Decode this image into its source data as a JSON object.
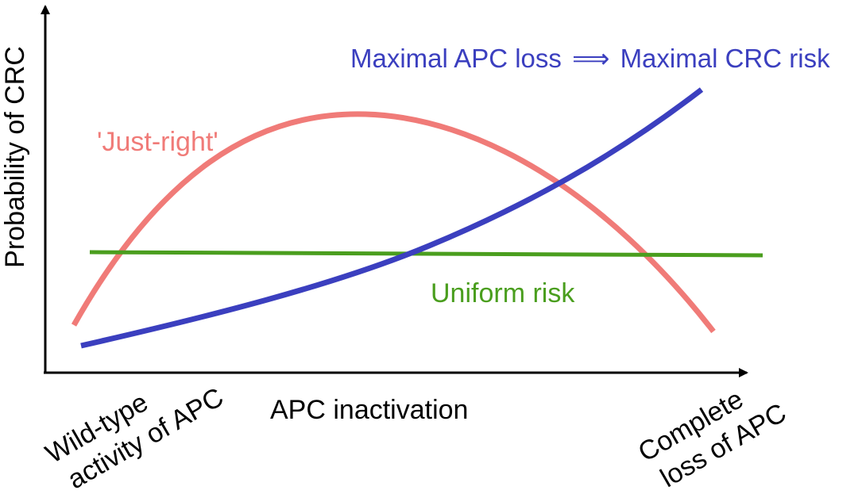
{
  "diagram": {
    "y_axis_label": "Probability of CRC",
    "x_axis_label": "APC inactivation",
    "x_left_label": [
      "Wild-type",
      "activity of APC"
    ],
    "x_right_label": [
      "Complete",
      "loss of APC"
    ],
    "curves": [
      {
        "id": "just-right",
        "label": "'Just-right'",
        "color": "#f07b78",
        "shape": "inverted-u"
      },
      {
        "id": "maximal",
        "label": "Maximal APC loss",
        "label_suffix": "Maximal CRC risk",
        "arrow_glyph": "⟹",
        "color": "#3b3fbf",
        "shape": "increasing"
      },
      {
        "id": "uniform",
        "label": "Uniform risk",
        "color": "#4a9e1e",
        "shape": "flat"
      }
    ],
    "axis_color": "#000000"
  }
}
